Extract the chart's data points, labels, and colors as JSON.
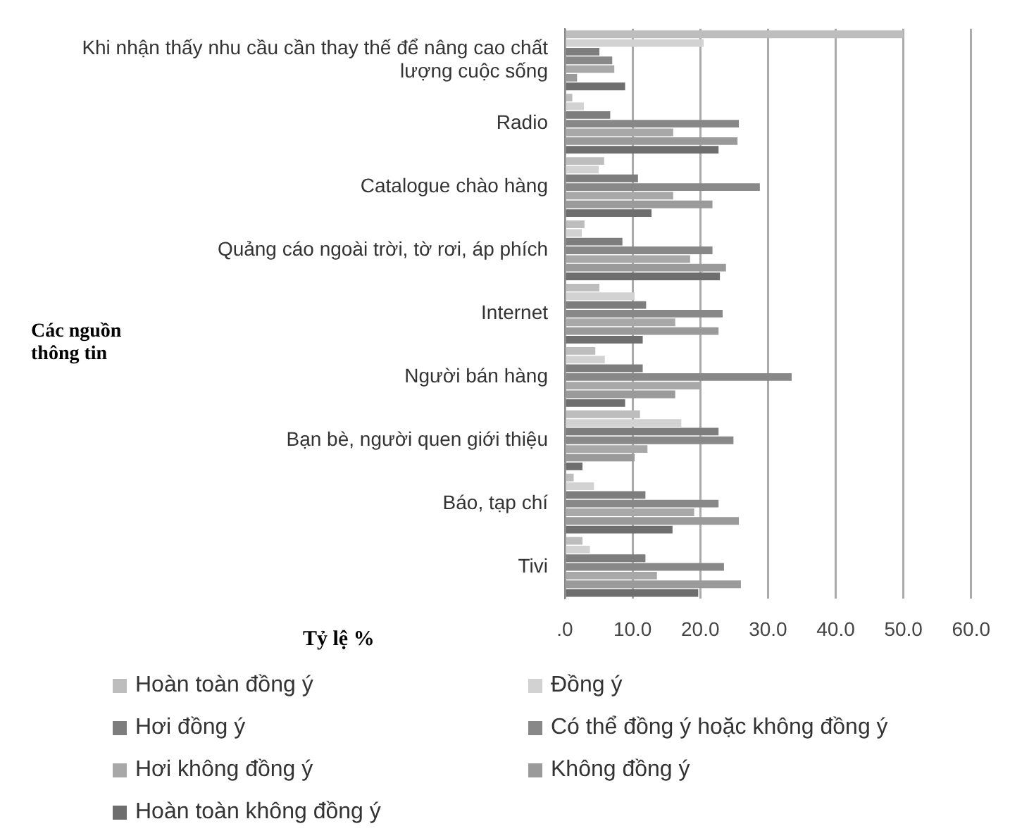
{
  "chart_data": {
    "type": "bar",
    "orientation": "horizontal",
    "xlabel": "Tỷ lệ %",
    "ylabel": "Các nguồn thông tin",
    "categories": [
      "Khi nhận thấy nhu cầu cần thay thế để nâng cao chất lượng cuộc sống",
      "Radio",
      "Catalogue chào hàng",
      "Quảng cáo ngoài trời, tờ rơi, áp phích",
      "Internet",
      "Người bán hàng",
      "Bạn bè, người quen giới thiệu",
      "Báo, tạp chí",
      "Tivi"
    ],
    "series": [
      {
        "name": "Hoàn toàn đồng ý",
        "color": "#bdbdbd",
        "values": [
          50,
          1.1,
          5.8,
          2.9,
          5.1,
          4.5,
          11.1,
          1.3,
          2.6
        ]
      },
      {
        "name": "Đồng ý",
        "color": "#d2d2d2",
        "values": [
          20.5,
          2.8,
          5.0,
          2.5,
          10.3,
          5.9,
          17.2,
          4.3,
          3.7
        ]
      },
      {
        "name": "Hơi đồng ý",
        "color": "#7d7d7d",
        "values": [
          5.1,
          6.7,
          10.8,
          8.5,
          12.0,
          11.5,
          22.7,
          11.9,
          11.9
        ]
      },
      {
        "name": "Có thể đồng ý hoặc không đồng ý",
        "color": "#888888",
        "values": [
          7.0,
          25.7,
          28.8,
          21.8,
          23.3,
          33.5,
          24.9,
          22.7,
          23.5
        ]
      },
      {
        "name": "Hơi không đồng ý",
        "color": "#a8a8a8",
        "values": [
          7.3,
          16.0,
          16.0,
          18.5,
          16.3,
          20.1,
          12.2,
          19.1,
          13.6
        ]
      },
      {
        "name": "Không đồng ý",
        "color": "#9a9a9a",
        "values": [
          1.8,
          25.5,
          21.8,
          23.8,
          22.7,
          16.3,
          10.3,
          25.7,
          26.0
        ]
      },
      {
        "name": "Hoàn toàn không đồng ý",
        "color": "#6e6e6e",
        "values": [
          8.9,
          22.7,
          12.8,
          22.9,
          11.5,
          8.9,
          2.6,
          15.9,
          19.7
        ]
      }
    ],
    "xlim": [
      0,
      60
    ],
    "xticks": [
      {
        "value": 0,
        "label": ".0"
      },
      {
        "value": 10,
        "label": "10.0"
      },
      {
        "value": 20,
        "label": "20.0"
      },
      {
        "value": 30,
        "label": "30.0"
      },
      {
        "value": 40,
        "label": "40.0"
      },
      {
        "value": 50,
        "label": "50.0"
      },
      {
        "value": 60,
        "label": "60.0"
      }
    ],
    "grid": "x",
    "legend": "bottom"
  }
}
